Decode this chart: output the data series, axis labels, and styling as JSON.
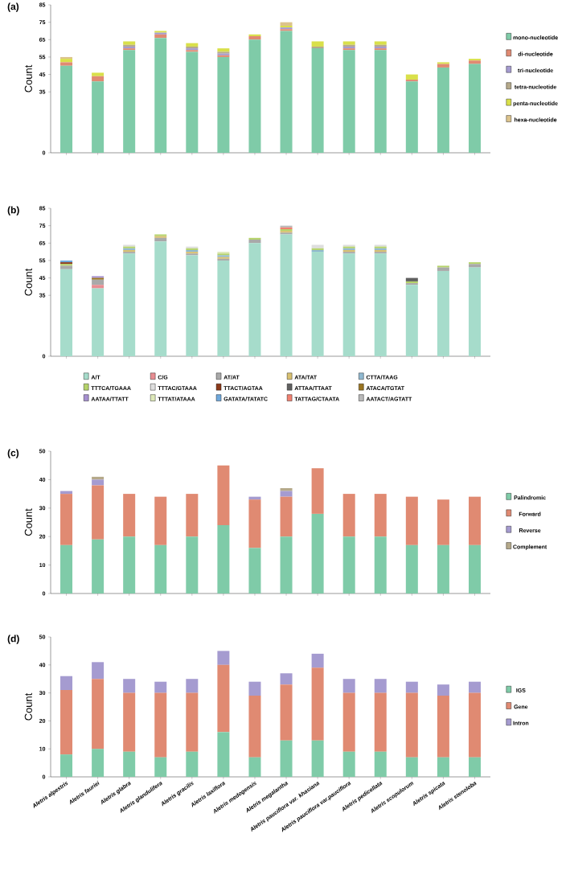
{
  "chart_data": [
    {
      "type": "bar",
      "stacked": true,
      "title": "(a)",
      "ylabel": "Count",
      "legend": "right",
      "tick_labels": "y",
      "categories": [
        null,
        null,
        null,
        null,
        null,
        null,
        null,
        null,
        null,
        null,
        null,
        null,
        null,
        null
      ],
      "ylim": [
        0,
        85
      ],
      "yticks": [
        0,
        35,
        45,
        55,
        65,
        75,
        85
      ],
      "series": [
        {
          "name": "mono-nucleotide",
          "color": "#7fcba8",
          "values": [
            50,
            41,
            59,
            66,
            58,
            55,
            65,
            70,
            60,
            59,
            59,
            41,
            49,
            51
          ]
        },
        {
          "name": "di-nucleotide",
          "color": "#e08a72",
          "values": [
            2,
            3,
            1,
            2,
            1,
            1,
            2,
            1,
            0,
            1,
            1,
            1,
            2,
            2
          ]
        },
        {
          "name": "tri-nucleotide",
          "color": "#a59bd0",
          "values": [
            0,
            0,
            1,
            1,
            1,
            1,
            0,
            1,
            0,
            1,
            1,
            0,
            0,
            0
          ]
        },
        {
          "name": "tetra-nucleotide",
          "color": "#b5a98a",
          "values": [
            0,
            0,
            1,
            0,
            1,
            1,
            0,
            0,
            1,
            1,
            1,
            0,
            0,
            0
          ]
        },
        {
          "name": "penta-nucleotide",
          "color": "#d9e04a",
          "values": [
            2,
            2,
            2,
            1,
            2,
            2,
            1,
            1,
            3,
            2,
            2,
            3,
            1,
            1
          ]
        },
        {
          "name": "hexa-nucleotide",
          "color": "#dcc38c",
          "values": [
            1,
            0,
            0,
            0,
            0,
            0,
            0,
            2,
            0,
            0,
            0,
            0,
            0,
            0
          ]
        }
      ]
    },
    {
      "type": "bar",
      "stacked": true,
      "title": "(b)",
      "ylabel": "Count",
      "legend": "bottom",
      "tick_labels": "y",
      "categories": [
        null,
        null,
        null,
        null,
        null,
        null,
        null,
        null,
        null,
        null,
        null,
        null,
        null,
        null
      ],
      "ylim": [
        0,
        85
      ],
      "yticks": [
        0,
        35,
        45,
        55,
        65,
        75,
        85
      ],
      "series": [
        {
          "name": "A/T",
          "color": "#a6dccb",
          "values": [
            50,
            39,
            59,
            66,
            58,
            55,
            65,
            70,
            60,
            59,
            59,
            41,
            49,
            51
          ]
        },
        {
          "name": "C/G",
          "color": "#e88d92",
          "values": [
            0,
            2,
            0,
            0,
            0,
            0,
            0,
            0,
            0,
            0,
            0,
            0,
            0,
            0
          ]
        },
        {
          "name": "AT/AT",
          "color": "#a9a9a9",
          "values": [
            2,
            3,
            1,
            2,
            1,
            1,
            2,
            1,
            0,
            1,
            1,
            1,
            2,
            2
          ]
        },
        {
          "name": "ATA/TAT",
          "color": "#d8c070",
          "values": [
            0,
            0,
            1,
            1,
            1,
            1,
            0,
            1,
            0,
            1,
            1,
            0,
            0,
            0
          ]
        },
        {
          "name": "CTTA/TAAG",
          "color": "#8fb8d0",
          "values": [
            0,
            0,
            1,
            0,
            1,
            1,
            0,
            0,
            1,
            1,
            1,
            0,
            0,
            0
          ]
        },
        {
          "name": "TTTCA/TGAAA",
          "color": "#b5d36a",
          "values": [
            1,
            0,
            1,
            1,
            1,
            1,
            1,
            1,
            1,
            1,
            1,
            1,
            1,
            1
          ]
        },
        {
          "name": "TTTAC/GTAAA",
          "color": "#dedede",
          "values": [
            0,
            0,
            1,
            0,
            1,
            0,
            0,
            0,
            2,
            1,
            1,
            0,
            0,
            0
          ]
        },
        {
          "name": "TTACT/AGTAA",
          "color": "#8b3a1a",
          "values": [
            1,
            0,
            0,
            0,
            0,
            0,
            0,
            0,
            0,
            0,
            0,
            0,
            0,
            0
          ]
        },
        {
          "name": "ATTAA/TTAAT",
          "color": "#606060",
          "values": [
            0,
            0,
            0,
            0,
            0,
            0,
            0,
            0,
            0,
            0,
            0,
            2,
            0,
            0
          ]
        },
        {
          "name": "ATACA/TGTAT",
          "color": "#9a7420",
          "values": [
            0,
            1,
            0,
            0,
            0,
            0,
            0,
            0,
            0,
            0,
            0,
            0,
            0,
            0
          ]
        },
        {
          "name": "AATAA/TTATT",
          "color": "#a58fcf",
          "values": [
            0,
            1,
            0,
            0,
            0,
            0,
            0,
            0,
            0,
            0,
            0,
            0,
            0,
            0
          ]
        },
        {
          "name": "TTTAT/ATAAA",
          "color": "#dde8b8",
          "values": [
            0,
            0,
            0,
            0,
            0,
            1,
            0,
            0,
            0,
            0,
            0,
            0,
            0,
            0
          ]
        },
        {
          "name": "GATATA/TATATC",
          "color": "#6fa8dc",
          "values": [
            1,
            0,
            0,
            0,
            0,
            0,
            0,
            0,
            0,
            0,
            0,
            0,
            0,
            0
          ]
        },
        {
          "name": "TATTAG/CTAATA",
          "color": "#f08070",
          "values": [
            0,
            0,
            0,
            0,
            0,
            0,
            0,
            1,
            0,
            0,
            0,
            0,
            0,
            0
          ]
        },
        {
          "name": "AATACT/AGTATT",
          "color": "#b8b8b8",
          "values": [
            0,
            0,
            0,
            0,
            0,
            0,
            0,
            1,
            0,
            0,
            0,
            0,
            0,
            0
          ]
        }
      ]
    },
    {
      "type": "bar",
      "stacked": true,
      "title": "(c)",
      "ylabel": "Count",
      "legend": "right",
      "tick_labels": "y",
      "categories": [
        null,
        null,
        null,
        null,
        null,
        null,
        null,
        null,
        null,
        null,
        null,
        null,
        null,
        null
      ],
      "ylim": [
        0,
        50
      ],
      "yticks": [
        0,
        10,
        20,
        30,
        40,
        50
      ],
      "series": [
        {
          "name": "Palindromic",
          "color": "#7fcba8",
          "values": [
            17,
            19,
            20,
            17,
            20,
            24,
            16,
            20,
            28,
            20,
            20,
            17,
            17,
            17
          ]
        },
        {
          "name": "Forward",
          "color": "#e08a72",
          "values": [
            18,
            19,
            15,
            17,
            15,
            21,
            17,
            14,
            16,
            15,
            15,
            17,
            16,
            17
          ]
        },
        {
          "name": "Reverse",
          "color": "#a59bd0",
          "values": [
            1,
            2,
            0,
            0,
            0,
            0,
            1,
            2,
            0,
            0,
            0,
            0,
            0,
            0
          ]
        },
        {
          "name": "Complement",
          "color": "#b5a98a",
          "values": [
            0,
            1,
            0,
            0,
            0,
            0,
            0,
            1,
            0,
            0,
            0,
            0,
            0,
            0
          ]
        }
      ]
    },
    {
      "type": "bar",
      "stacked": true,
      "title": "(d)",
      "ylabel": "Count",
      "legend": "right",
      "categories": [
        "Aletris alpestris",
        "Aletris fauriei",
        "Aletris glabra",
        "Aletris glandulifera",
        "Aletris gracilis",
        "Aletris laxiflora",
        "Aletris medogensis",
        "Aletris megalantha",
        "Aletris pauciflora var. khasiana",
        "Aletris pauciflora var.pauciflora",
        "Aletris pedicellata",
        "Aletris scopulorum",
        "Aletris spicata",
        "Aletris stenoloba"
      ],
      "ylim": [
        0,
        50
      ],
      "yticks": [
        0,
        10,
        20,
        30,
        40,
        50
      ],
      "series": [
        {
          "name": "IGS",
          "color": "#7fcba8",
          "values": [
            8,
            10,
            9,
            7,
            9,
            16,
            7,
            13,
            13,
            9,
            9,
            7,
            7,
            7
          ]
        },
        {
          "name": "Gene",
          "color": "#e08a72",
          "values": [
            23,
            25,
            21,
            23,
            21,
            24,
            22,
            20,
            26,
            21,
            21,
            23,
            22,
            23
          ]
        },
        {
          "name": "Intron",
          "color": "#a59bd0",
          "values": [
            5,
            6,
            5,
            4,
            5,
            5,
            5,
            4,
            5,
            5,
            5,
            4,
            4,
            4
          ]
        }
      ]
    }
  ]
}
